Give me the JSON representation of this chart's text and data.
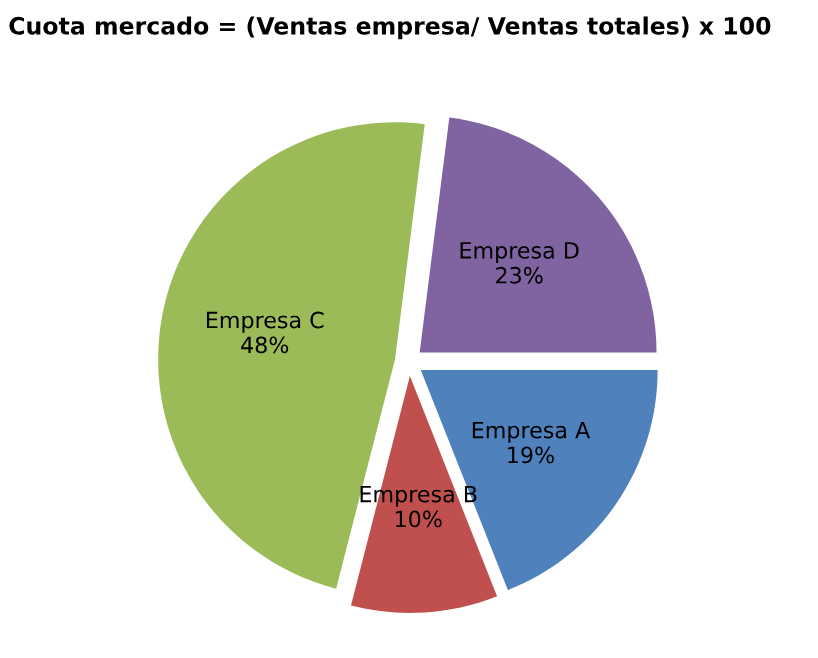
{
  "chart_data": {
    "type": "pie",
    "title": "Cuota mercado = (Ventas empresa/ Ventas totales) x 100",
    "categories": [
      "Empresa A",
      "Empresa B",
      "Empresa C",
      "Empresa D"
    ],
    "values": [
      19,
      10,
      48,
      23
    ],
    "value_labels": [
      "19%",
      "10%",
      "48%",
      "23%"
    ],
    "colors": [
      "#4f81bd",
      "#c0504d",
      "#9bbb59",
      "#8064a2"
    ],
    "legend": false
  }
}
